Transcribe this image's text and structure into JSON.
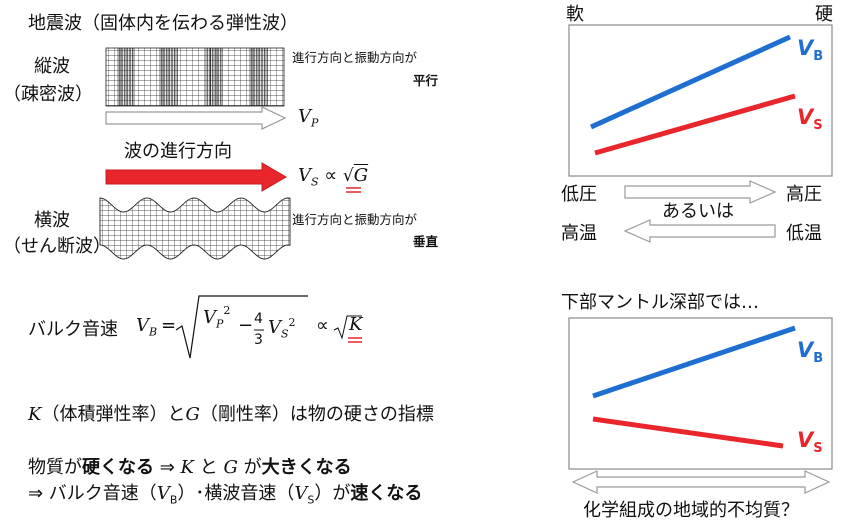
{
  "left": {
    "title": "地震波（固体内を伝わる弾性波）",
    "p_wave": {
      "label_line1": "縦波",
      "label_line2": "（疎密波）",
      "note_line1": "進行方向と振動方向が",
      "note_line2": "平行",
      "velocity_symbol": "V",
      "velocity_sub": "P"
    },
    "direction_label": "波の進行方向",
    "s_wave": {
      "label_line1": "横波",
      "label_line2": "（せん断波）",
      "note_line1": "進行方向と振動方向が",
      "note_line2": "垂直",
      "formula_v": "V",
      "formula_sub": "S",
      "formula_prop": "∝",
      "formula_g": "G"
    },
    "bulk": {
      "label": "バルク音速",
      "v": "V",
      "v_sub": "B",
      "eq": "=",
      "vp": "V",
      "vp_sub": "P",
      "sq1": "2",
      "minus": "−",
      "num": "4",
      "den": "3",
      "vs": "V",
      "vs_sub": "S",
      "sq2": "2",
      "prop": "∝",
      "k": "K"
    },
    "moduli_line": {
      "k": "K",
      "part1": "（体積弾性率）と",
      "g": "G",
      "part2": "（剛性率）は物の硬さの指標"
    },
    "summary1": {
      "a": "物質が",
      "b": "硬くなる",
      "c": "⇒ ",
      "k": "K",
      "d": " と ",
      "g": "G",
      "e": " が",
      "f": "大きくなる"
    },
    "summary2": {
      "a": "⇒ バルク音速（",
      "v1": "V",
      "v1_sub": "B",
      "b": "）･横波音速（",
      "v2": "V",
      "v2_sub": "S",
      "c": "）が",
      "d": "速くなる"
    }
  },
  "right": {
    "soft_label": "軟",
    "hard_label": "硬",
    "plot1": {
      "vb_label": "V",
      "vb_sub": "B",
      "vs_label": "V",
      "vs_sub": "S"
    },
    "low_pressure": "低圧",
    "high_pressure": "高圧",
    "or_label": "あるいは",
    "high_temp": "高温",
    "low_temp": "低温",
    "lower_mantle_title": "下部マントル深部では…",
    "plot2": {
      "vb_label": "V",
      "vb_sub": "B",
      "vs_label": "V",
      "vs_sub": "S"
    },
    "question": "化学組成の地域的不均質？"
  },
  "colors": {
    "vb_blue": "#1f6fd1",
    "vs_red": "#e8262b",
    "frame": "#8a8a8a",
    "text": "#111111"
  }
}
